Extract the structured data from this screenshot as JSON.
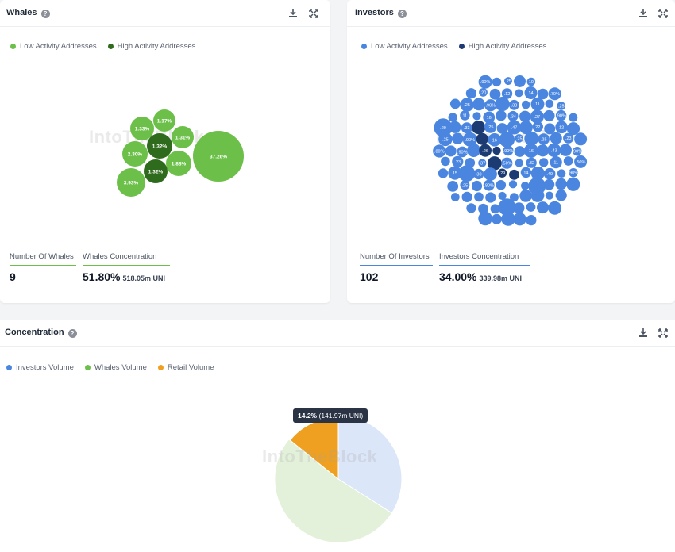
{
  "whales": {
    "title": "Whales",
    "legend": [
      {
        "label": "Low Activity Addresses",
        "color": "#6cc04a"
      },
      {
        "label": "High Activity Addresses",
        "color": "#2f6b1c"
      }
    ],
    "stats": {
      "count_label": "Number Of Whales",
      "count_value": "9",
      "conc_label": "Whales Concentration",
      "conc_value": "51.80%",
      "conc_sub": "518.05m UNI"
    }
  },
  "investors": {
    "title": "Investors",
    "legend": [
      {
        "label": "Low Activity Addresses",
        "color": "#4a86e0"
      },
      {
        "label": "High Activity Addresses",
        "color": "#1d3b73"
      }
    ],
    "stats": {
      "count_label": "Number Of Investors",
      "count_value": "102",
      "conc_label": "Investors Concentration",
      "conc_value": "34.00%",
      "conc_sub": "339.98m UNI"
    }
  },
  "concentration": {
    "title": "Concentration",
    "legend": [
      {
        "label": "Investors Volume",
        "color": "#4a86e0"
      },
      {
        "label": "Whales Volume",
        "color": "#6cc04a"
      },
      {
        "label": "Retail Volume",
        "color": "#f0a020"
      }
    ],
    "tooltip": {
      "pct": "14.2%",
      "detail": "(141.97m UNI)"
    }
  },
  "watermark": "IntoTheBlock",
  "chart_data": [
    {
      "type": "scatter",
      "subtype": "bubble",
      "name_hint": "whales",
      "points": [
        {
          "label": "37.26%",
          "activity": "low"
        },
        {
          "label": "1.17%",
          "activity": "low"
        },
        {
          "label": "1.33%",
          "activity": "low"
        },
        {
          "label": "1.31%",
          "activity": "low"
        },
        {
          "label": "1.32%",
          "activity": "high"
        },
        {
          "label": "2.30%",
          "activity": "low"
        },
        {
          "label": "1.88%",
          "activity": "low"
        },
        {
          "label": "1.32%",
          "activity": "high"
        },
        {
          "label": "3.93%",
          "activity": "low"
        }
      ]
    },
    {
      "type": "scatter",
      "subtype": "bubble",
      "name_hint": "investors",
      "labels": [
        ".90%",
        ".25",
        "10",
        ".20",
        ".12",
        "14",
        ".70%",
        ".25",
        ".90%",
        ".38",
        "11",
        ".25",
        "11",
        "16",
        ".34",
        ".27",
        ".90%",
        ".20",
        ".33",
        ".25",
        ".47",
        "22",
        "12",
        ".25",
        ".90%",
        "16",
        ".25",
        ".25",
        ".23",
        ".80%",
        ".90%",
        ".26",
        ".90%",
        "16",
        ".43",
        ".90%",
        ".23",
        ".37",
        ".50%",
        ".32",
        "11",
        ".50%",
        "15",
        ".30",
        ".29",
        "14",
        ".49",
        ".90%",
        ".25",
        ".80%"
      ]
    },
    {
      "type": "pie",
      "slices": [
        {
          "name": "Investors Volume",
          "value": 34.0
        },
        {
          "name": "Whales Volume",
          "value": 51.8
        },
        {
          "name": "Retail Volume",
          "value": 14.2
        }
      ]
    }
  ]
}
